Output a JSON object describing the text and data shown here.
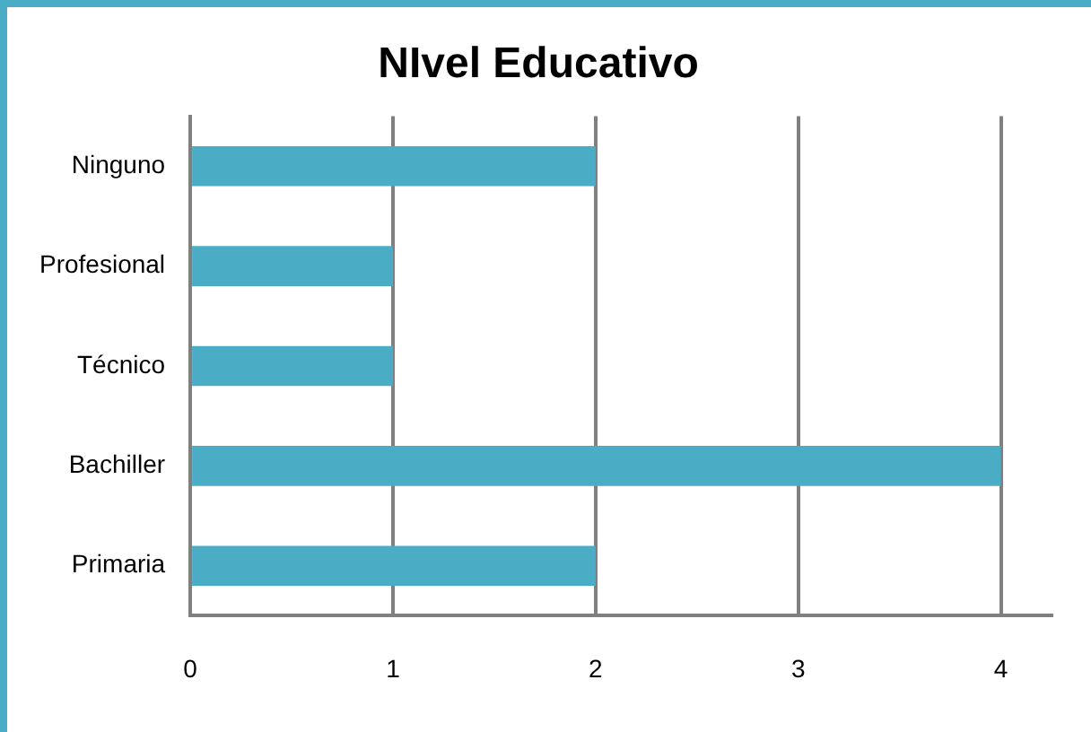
{
  "chart_data": {
    "type": "bar",
    "orientation": "horizontal",
    "title": "NIvel Educativo",
    "categories": [
      "Ninguno",
      "Profesional",
      "Técnico",
      "Bachiller",
      "Primaria"
    ],
    "values": [
      2,
      1,
      1,
      4,
      2
    ],
    "color": "#4bacc6",
    "xlim": [
      0,
      4.25
    ],
    "xticks": [
      0,
      1,
      2,
      3,
      4
    ],
    "grid": "x",
    "legend": false
  }
}
